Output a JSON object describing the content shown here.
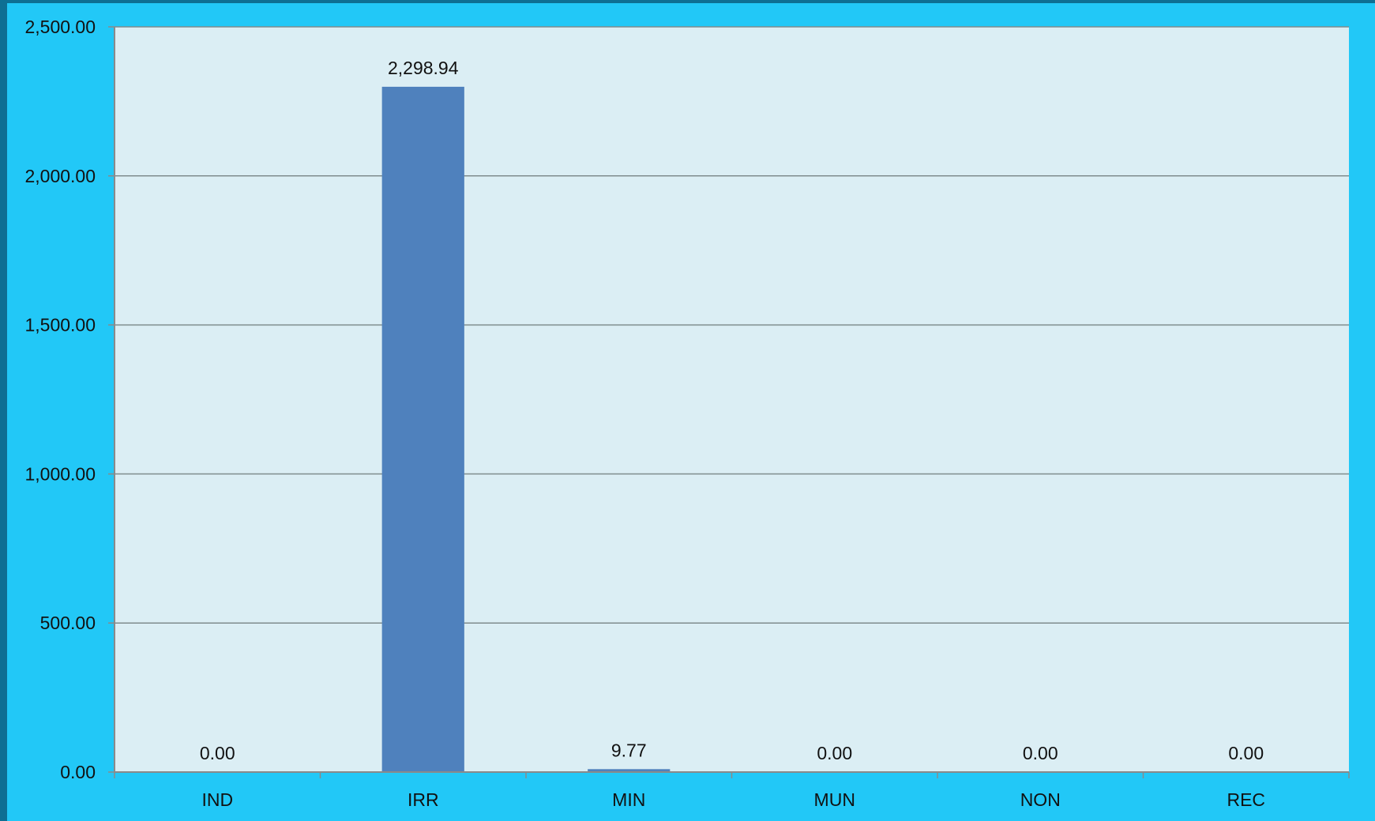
{
  "colors": {
    "outer_background": "#0e6f93",
    "chart_area_background": "#22c8f7",
    "plot_background": "#dbeef4",
    "bar_fill": "#4f81bd",
    "gridline": "#7f8c8d",
    "axis_line": "#8a8a8a"
  },
  "chart_data": {
    "type": "bar",
    "title": "",
    "xlabel": "",
    "ylabel": "",
    "categories": [
      "IND",
      "IRR",
      "MIN",
      "MUN",
      "NON",
      "REC"
    ],
    "values": [
      0.0,
      2298.94,
      9.77,
      0.0,
      0.0,
      0.0
    ],
    "data_labels": [
      "0.00",
      "2,298.94",
      "9.77",
      "0.00",
      "0.00",
      "0.00"
    ],
    "ylim": [
      0,
      2500
    ],
    "yticks": [
      0,
      500,
      1000,
      1500,
      2000,
      2500
    ],
    "ytick_labels": [
      "0.00",
      "500.00",
      "1,000.00",
      "1,500.00",
      "2,000.00",
      "2,500.00"
    ],
    "grid": "horizontal",
    "legend": "none"
  }
}
